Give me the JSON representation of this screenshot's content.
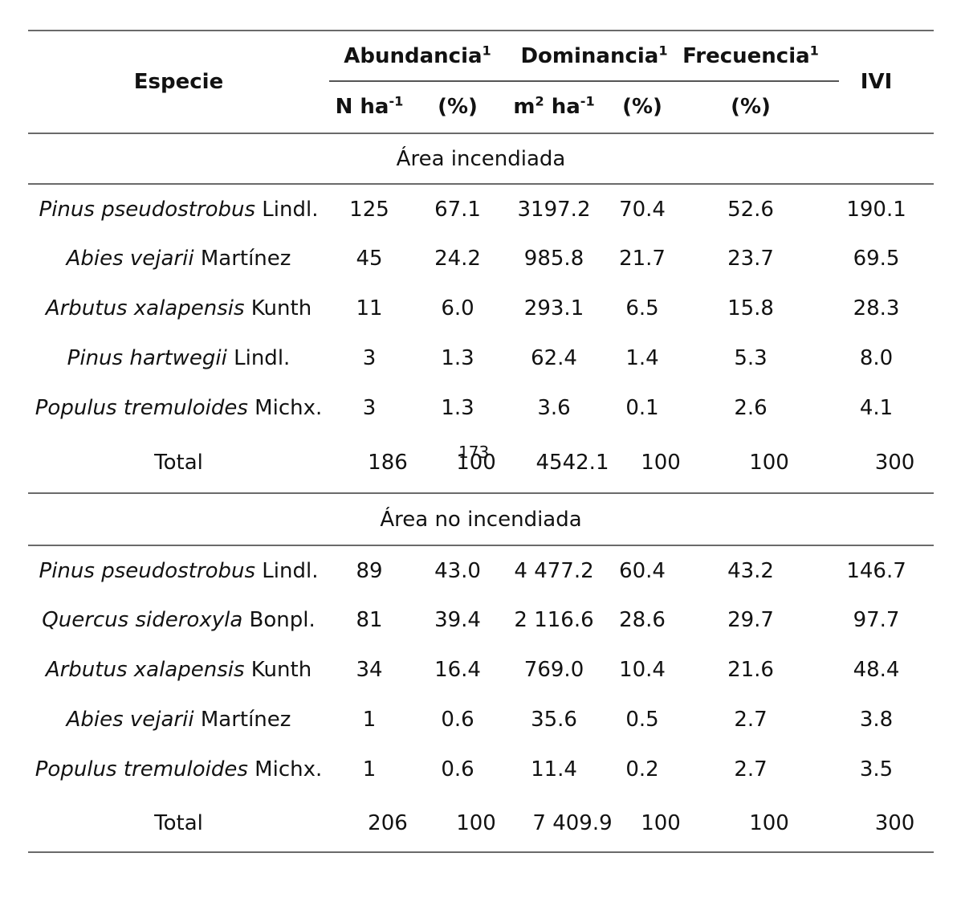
{
  "page_number": "173",
  "colors": {
    "rule": "#6a6a6a",
    "text": "#121212"
  },
  "table": {
    "header": {
      "especie": "Especie",
      "ivi": "IVI",
      "groups": [
        {
          "label": "Abundancia",
          "sup": "1"
        },
        {
          "label": "Dominancia",
          "sup": "1"
        },
        {
          "label": "Frecuencia",
          "sup": "1"
        }
      ],
      "subheaders": {
        "n_ha_base": "N ha",
        "n_ha_sup": "-1",
        "abund_pct": "(%)",
        "m2_base1": "m",
        "m2_sup1": "2",
        "m2_base2": " ha",
        "m2_sup2": "-1",
        "dom_pct": "(%)",
        "frec_pct": "(%)"
      }
    },
    "sections": [
      {
        "title": "Área incendiada",
        "rows": [
          {
            "species_italic": "Pinus pseudostrobus",
            "species_author": " Lindl.",
            "values": [
              "125",
              "67.1",
              "3197.2",
              "70.4",
              "52.6",
              "190.1"
            ]
          },
          {
            "species_italic": "Abies vejarii",
            "species_author": " Martínez",
            "values": [
              "45",
              "24.2",
              "985.8",
              "21.7",
              "23.7",
              "69.5"
            ]
          },
          {
            "species_italic": "Arbutus xalapensis",
            "species_author": " Kunth",
            "values": [
              "11",
              "6.0",
              "293.1",
              "6.5",
              "15.8",
              "28.3"
            ]
          },
          {
            "species_italic": "Pinus hartwegii",
            "species_author": " Lindl.",
            "values": [
              "3",
              "1.3",
              "62.4",
              "1.4",
              "5.3",
              "8.0"
            ]
          },
          {
            "species_italic": "Populus tremuloides",
            "species_author": " Michx.",
            "values": [
              "3",
              "1.3",
              "3.6",
              "0.1",
              "2.6",
              "4.1"
            ]
          }
        ],
        "total": {
          "label": "Total",
          "values": [
            "186",
            "100",
            "4542.1",
            "100",
            "100",
            "300"
          ]
        }
      },
      {
        "title": "Área no incendiada",
        "rows": [
          {
            "species_italic": "Pinus pseudostrobus",
            "species_author": " Lindl.",
            "values": [
              "89",
              "43.0",
              "4 477.2",
              "60.4",
              "43.2",
              "146.7"
            ]
          },
          {
            "species_italic": "Quercus sideroxyla",
            "species_author": " Bonpl.",
            "values": [
              "81",
              "39.4",
              "2 116.6",
              "28.6",
              "29.7",
              "97.7"
            ]
          },
          {
            "species_italic": "Arbutus xalapensis",
            "species_author": " Kunth",
            "values": [
              "34",
              "16.4",
              "769.0",
              "10.4",
              "21.6",
              "48.4"
            ]
          },
          {
            "species_italic": "Abies vejarii",
            "species_author": " Martínez",
            "values": [
              "1",
              "0.6",
              "35.6",
              "0.5",
              "2.7",
              "3.8"
            ]
          },
          {
            "species_italic": "Populus tremuloides",
            "species_author": " Michx.",
            "values": [
              "1",
              "0.6",
              "11.4",
              "0.2",
              "2.7",
              "3.5"
            ]
          }
        ],
        "total": {
          "label": "Total",
          "values": [
            "206",
            "100",
            "7 409.9",
            "100",
            "100",
            "300"
          ]
        }
      }
    ]
  }
}
